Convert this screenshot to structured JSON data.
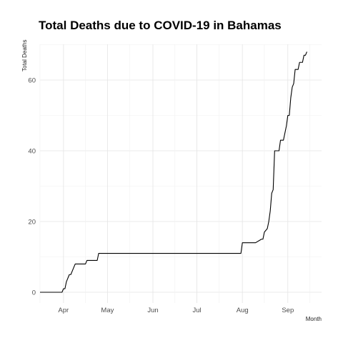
{
  "chart_data": {
    "type": "line",
    "title": "Total Deaths due to COVID-19 in Bahamas",
    "xlabel": "Month",
    "ylabel": "Total Deaths",
    "x_ticks": [
      "Apr",
      "May",
      "Jun",
      "Jul",
      "Aug",
      "Sep"
    ],
    "x_tick_dates": [
      "2020-04-01",
      "2020-05-01",
      "2020-06-01",
      "2020-07-01",
      "2020-08-01",
      "2020-09-01"
    ],
    "y_ticks": [
      0,
      20,
      40,
      60
    ],
    "xlim": [
      "2020-03-16",
      "2020-09-24"
    ],
    "ylim": [
      0,
      69
    ],
    "grid": true,
    "line_color": "#000000",
    "series": [
      {
        "x": [
          "2020-03-16",
          "2020-03-31",
          "2020-04-01",
          "2020-04-02",
          "2020-04-03",
          "2020-04-05",
          "2020-04-06",
          "2020-04-08",
          "2020-04-09",
          "2020-04-11",
          "2020-04-16",
          "2020-04-17",
          "2020-04-24",
          "2020-04-25",
          "2020-07-31",
          "2020-08-01",
          "2020-08-09",
          "2020-08-10",
          "2020-08-14",
          "2020-08-15",
          "2020-08-16",
          "2020-08-18",
          "2020-08-19",
          "2020-08-20",
          "2020-08-21",
          "2020-08-22",
          "2020-08-23",
          "2020-08-24",
          "2020-08-25",
          "2020-08-26",
          "2020-08-27",
          "2020-08-29",
          "2020-08-30",
          "2020-08-31",
          "2020-09-01",
          "2020-09-02",
          "2020-09-03",
          "2020-09-04",
          "2020-09-05",
          "2020-09-06",
          "2020-09-07",
          "2020-09-08",
          "2020-09-09",
          "2020-09-11",
          "2020-09-12",
          "2020-09-13",
          "2020-09-14"
        ],
        "y": [
          0,
          0,
          1,
          1,
          3,
          5,
          5,
          7,
          8,
          8,
          8,
          9,
          9,
          11,
          11,
          14,
          14,
          14,
          15,
          15,
          17,
          18,
          20,
          23,
          28,
          29,
          40,
          40,
          40,
          40,
          43,
          43,
          45,
          47,
          50,
          50,
          55,
          58,
          59,
          63,
          63,
          63,
          65,
          65,
          67,
          67,
          68
        ]
      }
    ]
  }
}
